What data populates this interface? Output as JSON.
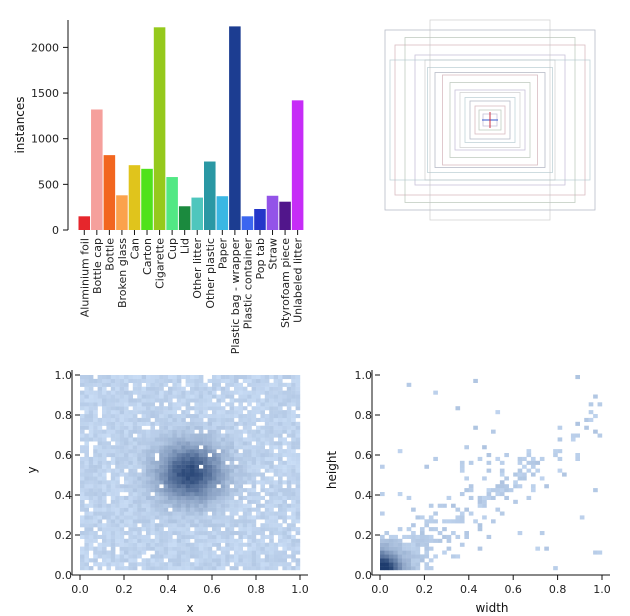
{
  "chart_data": [
    {
      "type": "bar",
      "ylabel": "instances",
      "ylim": [
        0,
        2300
      ],
      "yticks": [
        0,
        500,
        1000,
        1500,
        2000
      ],
      "ytick_labels": [
        "0",
        "500",
        "1000",
        "1500",
        "2000"
      ],
      "categories": [
        "Aluminium foil",
        "Bottle cap",
        "Bottle",
        "Broken glass",
        "Can",
        "Carton",
        "Cigarette",
        "Cup",
        "Lid",
        "Other litter",
        "Other plastic",
        "Paper",
        "Plastic bag - wrapper",
        "Plastic container",
        "Pop tab",
        "Straw",
        "Styrofoam piece",
        "Unlabeled litter"
      ],
      "values": [
        150,
        1320,
        820,
        380,
        710,
        670,
        2220,
        580,
        260,
        355,
        750,
        370,
        2230,
        150,
        230,
        375,
        310,
        1420
      ],
      "colors": [
        "#e6262c",
        "#f5a09c",
        "#f2661f",
        "#fba24c",
        "#e0c41c",
        "#4fe21b",
        "#95c91c",
        "#52e884",
        "#1b8a3e",
        "#4ec6bd",
        "#2a98a4",
        "#3ab7e3",
        "#1c3d91",
        "#3b66f0",
        "#2436c9",
        "#9353e8",
        "#51168b",
        "#c62cf7"
      ]
    },
    {
      "type": "box-overlay",
      "description_hidden": true,
      "box_count": 18
    },
    {
      "type": "heatmap",
      "xlabel": "x",
      "ylabel": "y",
      "xlim": [
        0,
        1
      ],
      "ylim": [
        0,
        1
      ],
      "xticks": [
        "0.0",
        "0.2",
        "0.4",
        "0.6",
        "0.8",
        "1.0"
      ],
      "yticks": [
        "0.0",
        "0.2",
        "0.4",
        "0.6",
        "0.8",
        "1.0"
      ],
      "center": [
        0.5,
        0.5
      ]
    },
    {
      "type": "heatmap",
      "xlabel": "width",
      "ylabel": "height",
      "xlim": [
        0,
        1
      ],
      "ylim": [
        0,
        1
      ],
      "xticks": [
        "0.0",
        "0.2",
        "0.4",
        "0.6",
        "0.8",
        "1.0"
      ],
      "yticks": [
        "0.0",
        "0.2",
        "0.4",
        "0.6",
        "0.8",
        "1.0"
      ]
    }
  ]
}
